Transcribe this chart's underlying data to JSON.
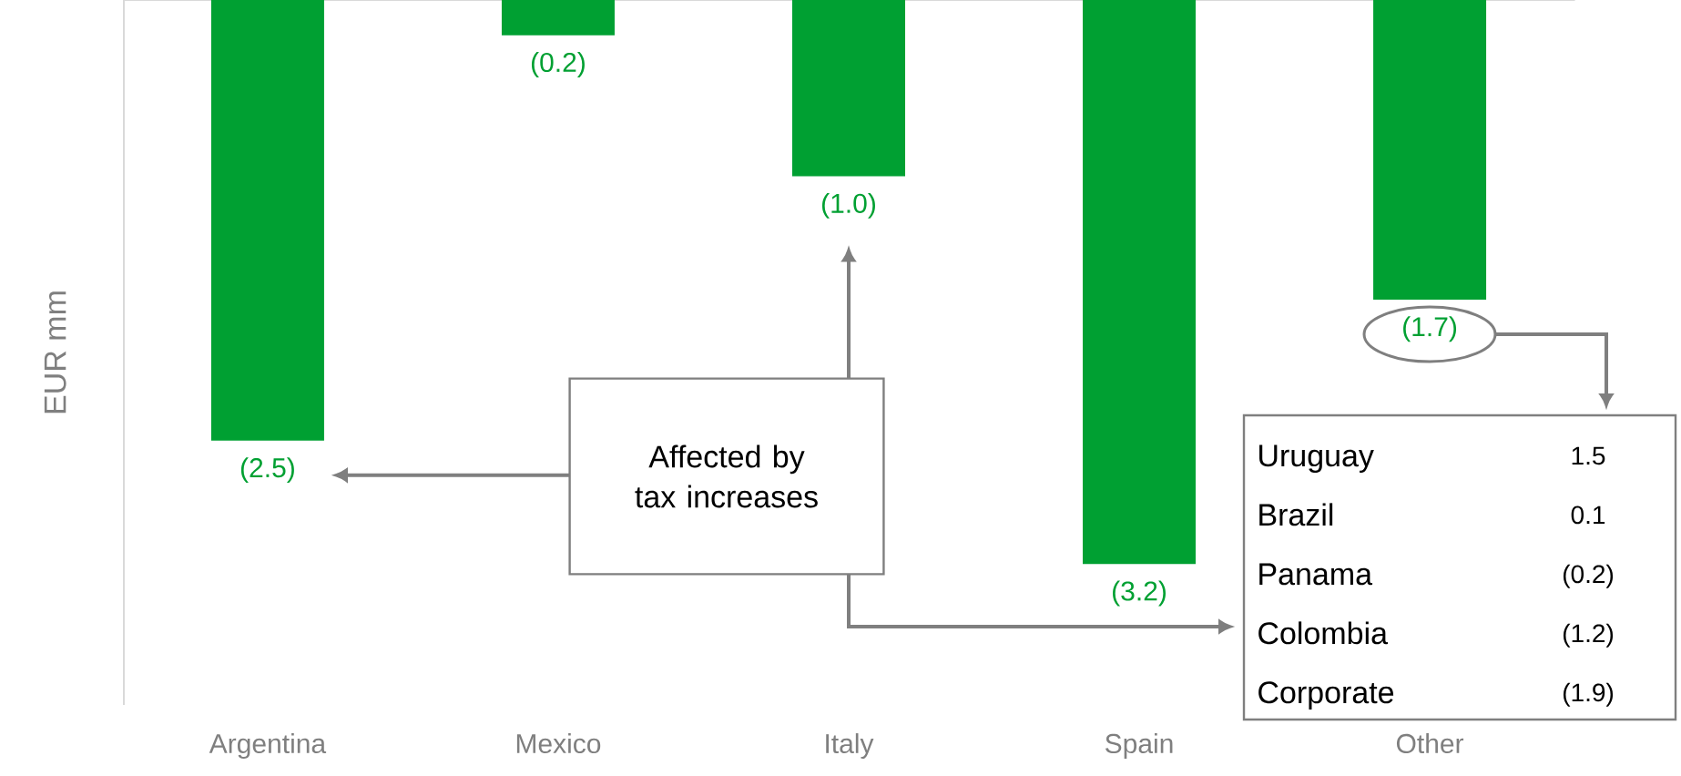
{
  "chart_data": {
    "type": "bar",
    "ylabel": "EUR mm",
    "categories": [
      "Argentina",
      "Mexico",
      "Italy",
      "Spain",
      "Other"
    ],
    "values": [
      -2.5,
      -0.2,
      -1.0,
      -3.2,
      -1.7
    ],
    "value_labels": [
      "(2.5)",
      "(0.2)",
      "(1.0)",
      "(3.2)",
      "(1.7)"
    ],
    "color": "#00a032",
    "ylim": [
      -4,
      0
    ],
    "annotations": [
      "Affected by tax increases",
      "Uruguay",
      "1.5",
      "Brazil",
      "0.1",
      "Panama",
      "(0.2)",
      "Colombia",
      "(1.2)",
      "Corporate",
      "(1.9)"
    ]
  }
}
